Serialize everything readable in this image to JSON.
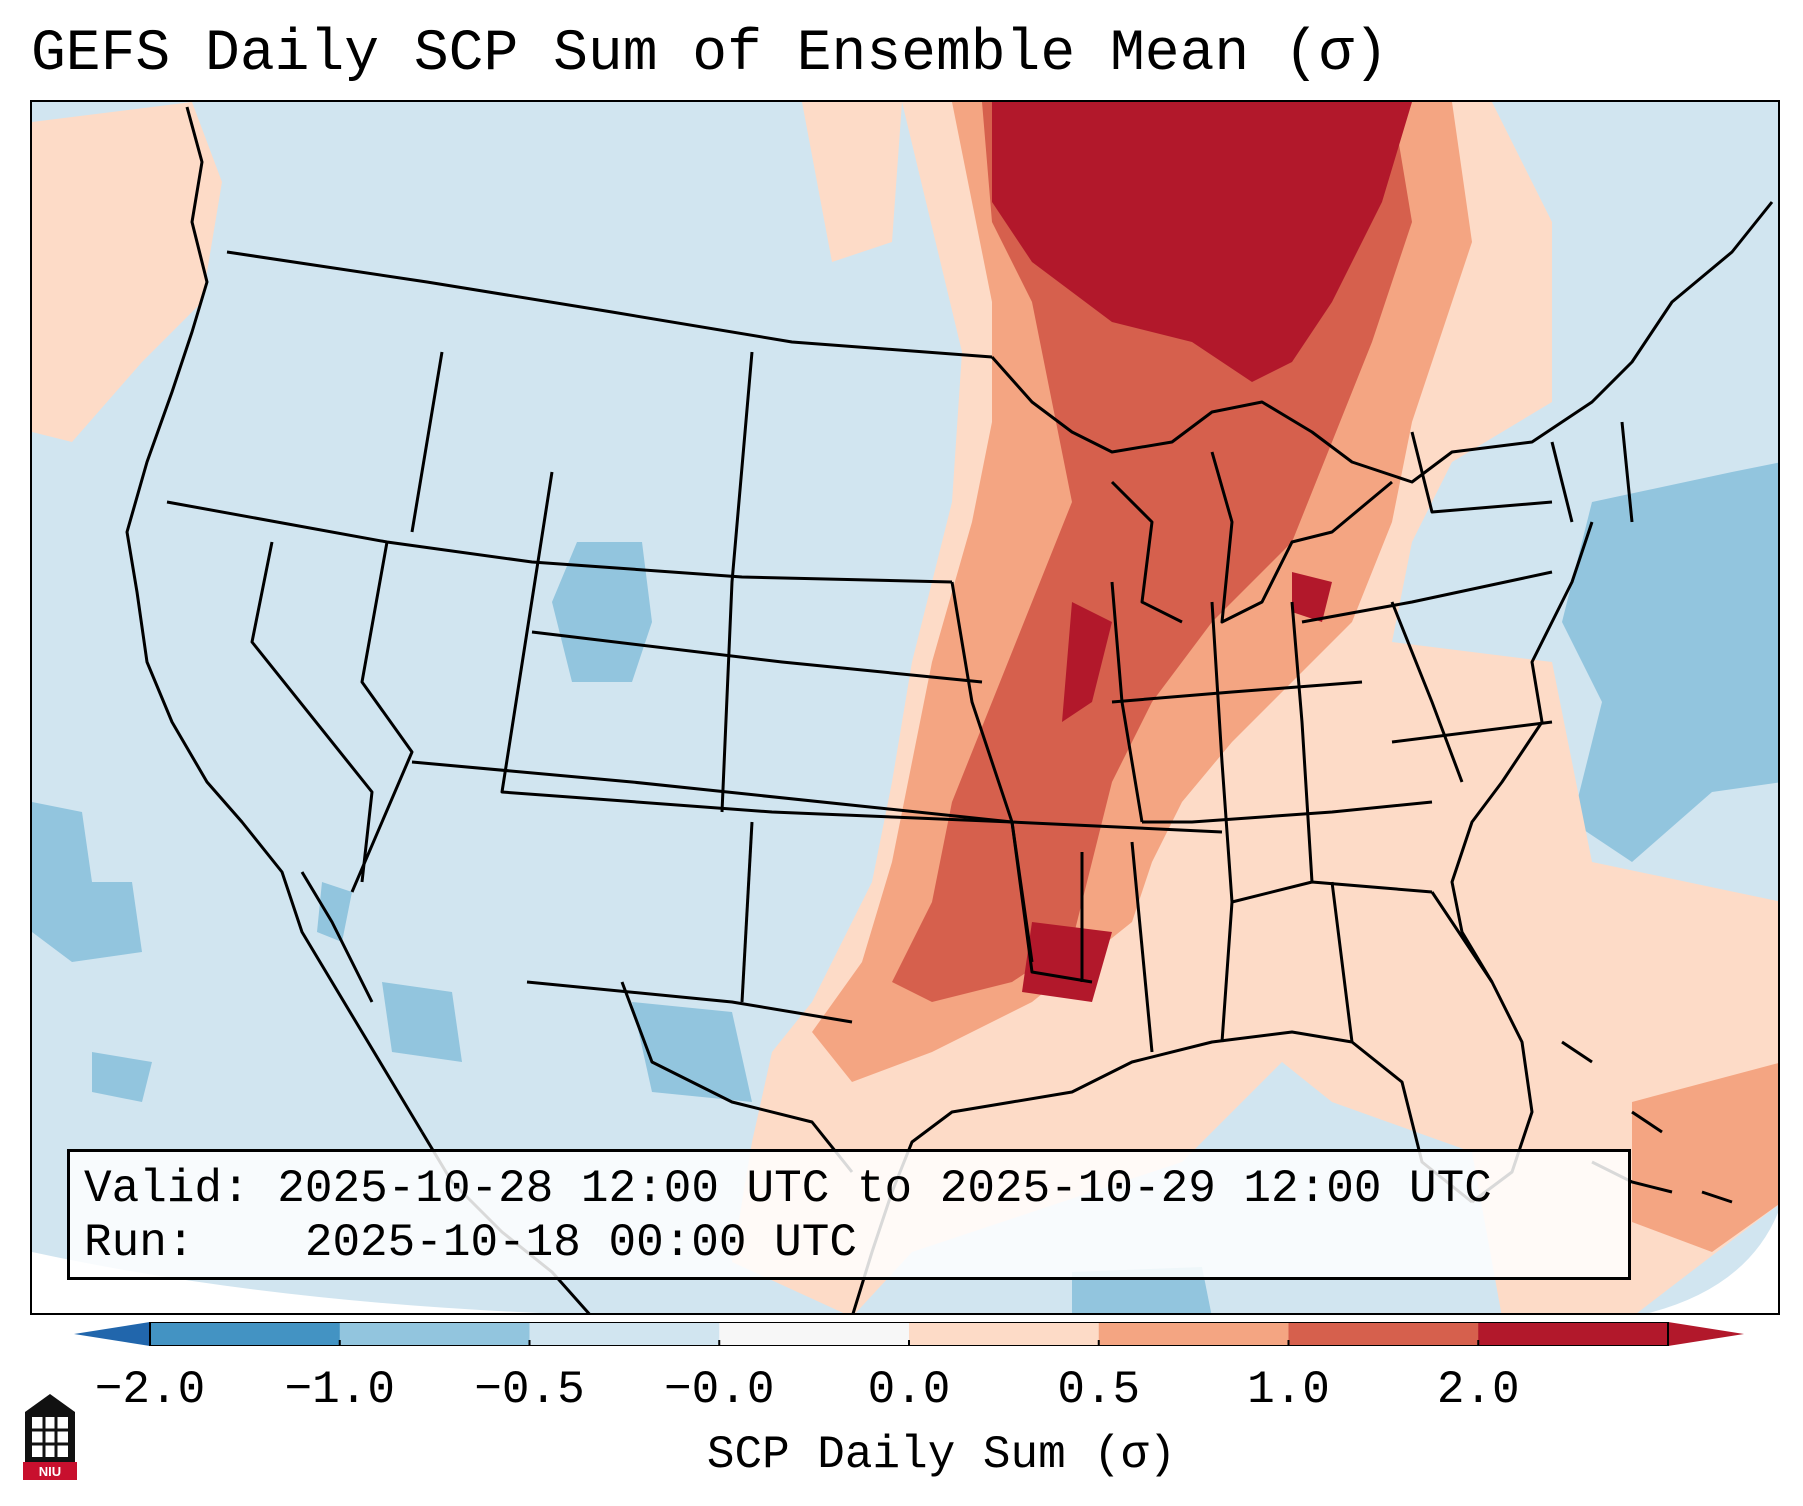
{
  "title": "GEFS Daily SCP Sum of Ensemble Mean (σ)",
  "info": {
    "valid_label": "Valid:",
    "valid_value": "2025-10-28 12:00 UTC to 2025-10-29 12:00 UTC",
    "run_label": "Run:",
    "run_value": "2025-10-18 00:00 UTC"
  },
  "colorbar": {
    "label": "SCP Daily Sum (σ)",
    "ticks": [
      "−2.0",
      "−1.0",
      "−0.5",
      "−0.0",
      "0.0",
      "0.5",
      "1.0",
      "2.0"
    ],
    "colors": [
      "#4393c3",
      "#92c5de",
      "#d1e5f0",
      "#f7f7f7",
      "#fddbc7",
      "#f4a582",
      "#d6604d",
      "#b2182b"
    ],
    "extend_low_color": "#2166ac",
    "extend_high_color": "#b2182b"
  },
  "map": {
    "region": "Continental United States",
    "background_color": "#d1e5f0"
  },
  "logo": {
    "text": "NIU"
  }
}
